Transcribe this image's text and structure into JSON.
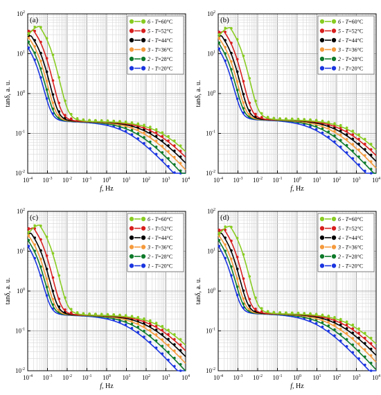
{
  "figure": {
    "y_tick_exponents": [
      "2",
      "1",
      "0",
      "-1",
      "-2"
    ],
    "x_tick_exponents": [
      "-4",
      "-3",
      "-2",
      "-1",
      "0",
      "1",
      "2",
      "3",
      "4"
    ],
    "tick_base": "10"
  },
  "legend": [
    {
      "num": "6",
      "sep": " - ",
      "var": "T",
      "value": "=60°C",
      "color": "#88cc22"
    },
    {
      "num": "5",
      "sep": " - ",
      "var": "T",
      "value": "=52°C",
      "color": "#d81e1e"
    },
    {
      "num": "4",
      "sep": " - ",
      "var": "T",
      "value": "=44°C",
      "color": "#000000"
    },
    {
      "num": "3",
      "sep": " - ",
      "var": "T",
      "value": "=36°C",
      "color": "#f59a3c"
    },
    {
      "num": "2",
      "sep": " - ",
      "var": "T",
      "value": "=28°C",
      "color": "#0e7a2a"
    },
    {
      "num": "1",
      "sep": " - ",
      "var": "T",
      "value": "=20°C",
      "color": "#1a35e0"
    }
  ],
  "chart_data": [
    {
      "panel": "(a)",
      "type": "line+scatter",
      "xlabel_var": "f",
      "xlabel_unit": ", Hz",
      "ylabel": "tanδ, a. u.",
      "xscale": "log",
      "yscale": "log",
      "xlim": [
        0.0001,
        10000
      ],
      "ylim": [
        0.01,
        100
      ],
      "grid": true,
      "legend_position": "top-right",
      "series": [
        {
          "name": "6 - T=60°C",
          "color": "#88cc22",
          "fmax": 0.0004,
          "peak": 48,
          "plateau": 0.2,
          "fc": 600
        },
        {
          "name": "5 - T=52°C",
          "color": "#d81e1e",
          "fmax": 0.0002,
          "peak": 38,
          "plateau": 0.2,
          "fc": 300
        },
        {
          "name": "4 - T=44°C",
          "color": "#000000",
          "fmax": 0.00015,
          "peak": 28,
          "plateau": 0.2,
          "fc": 150
        },
        {
          "name": "3 - T=36°C",
          "color": "#f59a3c",
          "fmax": 0.00012,
          "peak": 24,
          "plateau": 0.2,
          "fc": 70
        },
        {
          "name": "2 - T=28°C",
          "color": "#0e7a2a",
          "fmax": 0.0001,
          "peak": 20,
          "plateau": 0.2,
          "fc": 30
        },
        {
          "name": "1 - T=20°C",
          "color": "#1a35e0",
          "fmax": 8e-05,
          "peak": 17,
          "plateau": 0.2,
          "fc": 12
        }
      ]
    },
    {
      "panel": "(b)",
      "type": "line+scatter",
      "xlabel_var": "f",
      "xlabel_unit": ", Hz",
      "ylabel": "tanδ, a. u.",
      "xscale": "log",
      "yscale": "log",
      "xlim": [
        0.0001,
        10000
      ],
      "ylim": [
        0.01,
        100
      ],
      "grid": true,
      "legend_position": "top-right",
      "series": [
        {
          "name": "6 - T=60°C",
          "color": "#88cc22",
          "fmax": 0.0004,
          "peak": 45,
          "plateau": 0.22,
          "fc": 600
        },
        {
          "name": "5 - T=52°C",
          "color": "#d81e1e",
          "fmax": 0.0002,
          "peak": 36,
          "plateau": 0.22,
          "fc": 300
        },
        {
          "name": "4 - T=44°C",
          "color": "#000000",
          "fmax": 0.00015,
          "peak": 28,
          "plateau": 0.22,
          "fc": 150
        },
        {
          "name": "3 - T=36°C",
          "color": "#f59a3c",
          "fmax": 0.00012,
          "peak": 23,
          "plateau": 0.22,
          "fc": 70
        },
        {
          "name": "2 - T=28°C",
          "color": "#0e7a2a",
          "fmax": 0.0001,
          "peak": 19,
          "plateau": 0.22,
          "fc": 30
        },
        {
          "name": "1 - T=20°C",
          "color": "#1a35e0",
          "fmax": 8e-05,
          "peak": 16,
          "plateau": 0.22,
          "fc": 12
        }
      ]
    },
    {
      "panel": "(c)",
      "type": "line+scatter",
      "xlabel_var": "f",
      "xlabel_unit": ", Hz",
      "ylabel": "tanδ, a. u.",
      "xscale": "log",
      "yscale": "log",
      "xlim": [
        0.0001,
        10000
      ],
      "ylim": [
        0.01,
        100
      ],
      "grid": true,
      "legend_position": "top-right",
      "series": [
        {
          "name": "6 - T=60°C",
          "color": "#88cc22",
          "fmax": 0.0004,
          "peak": 45,
          "plateau": 0.25,
          "fc": 600
        },
        {
          "name": "5 - T=52°C",
          "color": "#d81e1e",
          "fmax": 0.0002,
          "peak": 38,
          "plateau": 0.25,
          "fc": 300
        },
        {
          "name": "4 - T=44°C",
          "color": "#000000",
          "fmax": 0.00015,
          "peak": 28,
          "plateau": 0.25,
          "fc": 150
        },
        {
          "name": "3 - T=36°C",
          "color": "#f59a3c",
          "fmax": 0.00012,
          "peak": 23,
          "plateau": 0.25,
          "fc": 70
        },
        {
          "name": "2 - T=28°C",
          "color": "#0e7a2a",
          "fmax": 0.0001,
          "peak": 19,
          "plateau": 0.25,
          "fc": 30
        },
        {
          "name": "1 - T=20°C",
          "color": "#1a35e0",
          "fmax": 8e-05,
          "peak": 16,
          "plateau": 0.25,
          "fc": 12
        }
      ]
    },
    {
      "panel": "(d)",
      "type": "line+scatter",
      "xlabel_var": "f",
      "xlabel_unit": ", Hz",
      "ylabel": "tanδ, a. u.",
      "xscale": "log",
      "yscale": "log",
      "xlim": [
        0.0001,
        10000
      ],
      "ylim": [
        0.01,
        100
      ],
      "grid": true,
      "legend_position": "top-right",
      "series": [
        {
          "name": "6 - T=60°C",
          "color": "#88cc22",
          "fmax": 0.0004,
          "peak": 42,
          "plateau": 0.27,
          "fc": 600
        },
        {
          "name": "5 - T=52°C",
          "color": "#d81e1e",
          "fmax": 0.0002,
          "peak": 35,
          "plateau": 0.27,
          "fc": 300
        },
        {
          "name": "4 - T=44°C",
          "color": "#000000",
          "fmax": 0.00015,
          "peak": 28,
          "plateau": 0.27,
          "fc": 150
        },
        {
          "name": "3 - T=36°C",
          "color": "#f59a3c",
          "fmax": 0.00012,
          "peak": 23,
          "plateau": 0.27,
          "fc": 70
        },
        {
          "name": "2 - T=28°C",
          "color": "#0e7a2a",
          "fmax": 0.0001,
          "peak": 19,
          "plateau": 0.27,
          "fc": 30
        },
        {
          "name": "1 - T=20°C",
          "color": "#1a35e0",
          "fmax": 8e-05,
          "peak": 16,
          "plateau": 0.27,
          "fc": 12
        }
      ]
    }
  ]
}
